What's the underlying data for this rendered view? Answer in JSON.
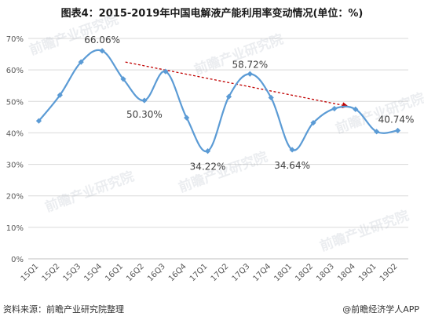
{
  "title": "图表4：2015-2019年中国电解液产能利用率变动情况(单位：%)",
  "source": "资料来源：前瞻产业研究院整理",
  "brand": "@前瞻经济学人APP",
  "watermark": "前瞻产业研究院",
  "colors": {
    "series": "#5B9BD5",
    "trend": "#C00000",
    "grid": "#D9D9D9",
    "axis_text": "#595959"
  },
  "chart_data": {
    "type": "line",
    "smooth": true,
    "title": "图表4：2015-2019年中国电解液产能利用率变动情况(单位：%)",
    "xlabel": "",
    "ylabel": "",
    "ylim": [
      0,
      70
    ],
    "yticks": [
      0,
      10,
      20,
      30,
      40,
      50,
      60,
      70
    ],
    "ytick_labels": [
      "0%",
      "10%",
      "20%",
      "30%",
      "40%",
      "50%",
      "60%",
      "70%"
    ],
    "grid": true,
    "categories": [
      "15Q1",
      "15Q2",
      "15Q3",
      "15Q4",
      "16Q1",
      "16Q2",
      "16Q3",
      "16Q4",
      "17Q1",
      "17Q2",
      "17Q3",
      "17Q4",
      "18Q1",
      "18Q2",
      "18Q3",
      "18Q4",
      "19Q1",
      "19Q2"
    ],
    "series": [
      {
        "values": [
          43.8,
          52.0,
          62.5,
          66.06,
          57.1,
          50.3,
          59.5,
          44.8,
          34.22,
          51.5,
          58.72,
          51.2,
          34.64,
          43.2,
          47.7,
          47.5,
          40.4,
          40.74
        ]
      }
    ],
    "data_labels": [
      {
        "index": 3,
        "text": "66.06%"
      },
      {
        "index": 5,
        "text": "50.30%"
      },
      {
        "index": 8,
        "text": "34.22%"
      },
      {
        "index": 10,
        "text": "58.72%"
      },
      {
        "index": 12,
        "text": "34.64%"
      },
      {
        "index": 17,
        "text": "40.74%"
      }
    ],
    "trend_arrow": {
      "from_index": 4.1,
      "from_value": 62.5,
      "to_index": 14.6,
      "to_value": 48.5
    }
  }
}
